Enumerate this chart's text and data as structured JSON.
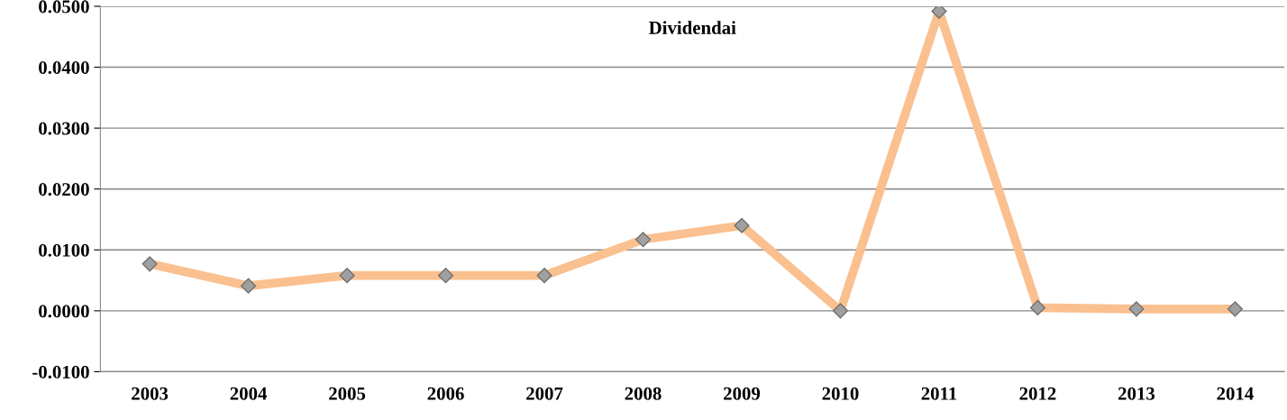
{
  "chart_data": {
    "type": "line",
    "title": "Dividendai",
    "categories": [
      "2003",
      "2004",
      "2005",
      "2006",
      "2007",
      "2008",
      "2009",
      "2010",
      "2011",
      "2012",
      "2013",
      "2014"
    ],
    "series": [
      {
        "color": "#fac090",
        "values": [
          0.0077,
          0.0041,
          0.0058,
          0.0058,
          0.0058,
          0.0117,
          0.014,
          0.0,
          0.0492,
          0.0005,
          0.0003,
          0.0003
        ]
      }
    ],
    "ylim": [
      -0.01,
      0.05
    ],
    "yticks": [
      {
        "value": -0.01,
        "label": "-0.0100"
      },
      {
        "value": 0,
        "label": "0.0000"
      },
      {
        "value": 0.01,
        "label": "0.0100"
      },
      {
        "value": 0.02,
        "label": "0.0200"
      },
      {
        "value": 0.03,
        "label": "0.0300"
      },
      {
        "value": 0.04,
        "label": "0.0400"
      },
      {
        "value": 0.05,
        "label": "0.0500"
      }
    ],
    "grid": "y",
    "marker": "diamond",
    "line_style": "solid"
  }
}
